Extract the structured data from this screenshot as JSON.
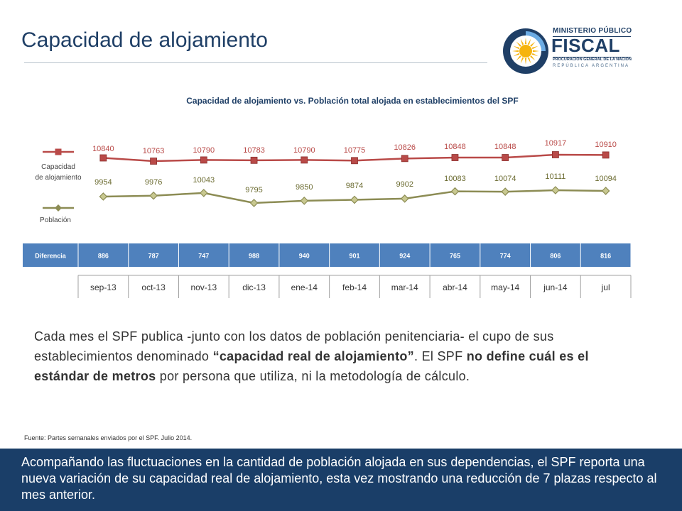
{
  "page": {
    "title": "Capacidad de alojamiento"
  },
  "logo": {
    "line1": "MINISTERIO PÚBLICO",
    "line2": "FISCAL",
    "line3": "PROCURACIÓN GENERAL DE LA NACIÓN",
    "line4": "REPÚBLICA ARGENTINA",
    "colors": {
      "navy": "#1f3f66",
      "sky": "#6cace4",
      "sun": "#f6b40e"
    }
  },
  "description": {
    "part1": "Cada mes el SPF publica -junto con los datos de población penitenciaria- el cupo de sus establecimientos denominado ",
    "bold1": "“capacidad real de alojamiento”",
    "part2": ". El SPF ",
    "bold2": "no define cuál es el estándar de metros",
    "part3": " por persona que utiliza, ni la metodología de cálculo."
  },
  "source": "Fuente: Partes semanales enviados por el SPF. Julio 2014.",
  "footer": {
    "text": "Acompañando las fluctuaciones en la cantidad de población alojada en sus dependencias, el SPF reporta una nueva variación de su capacidad real de alojamiento, esta vez mostrando una reducción de 7 plazas respecto al mes anterior."
  },
  "chart_data": {
    "type": "line",
    "title": "Capacidad de alojamiento vs. Población total alojada en establecimientos del SPF",
    "categories": [
      "sep-13",
      "oct-13",
      "nov-13",
      "dic-13",
      "ene-14",
      "feb-14",
      "mar-14",
      "abr-14",
      "may-14",
      "jun-14",
      "jul"
    ],
    "series": [
      {
        "name": "Capacidad de alojamiento",
        "legend_lines": [
          "Capacidad",
          "de alojamiento"
        ],
        "color": "#b94a48",
        "marker": "square",
        "values": [
          10840,
          10763,
          10790,
          10783,
          10790,
          10775,
          10826,
          10848,
          10848,
          10917,
          10910
        ]
      },
      {
        "name": "Población",
        "legend_lines": [
          "Población"
        ],
        "color": "#8c8c54",
        "marker": "diamond",
        "values": [
          9954,
          9976,
          10043,
          9795,
          9850,
          9874,
          9902,
          10083,
          10074,
          10111,
          10094
        ]
      }
    ],
    "table": {
      "row_label": "Diferencia",
      "values": [
        886,
        787,
        747,
        988,
        940,
        901,
        924,
        765,
        774,
        806,
        816
      ],
      "color": "#4f81bd"
    },
    "grid": false,
    "legend_position": "left"
  }
}
